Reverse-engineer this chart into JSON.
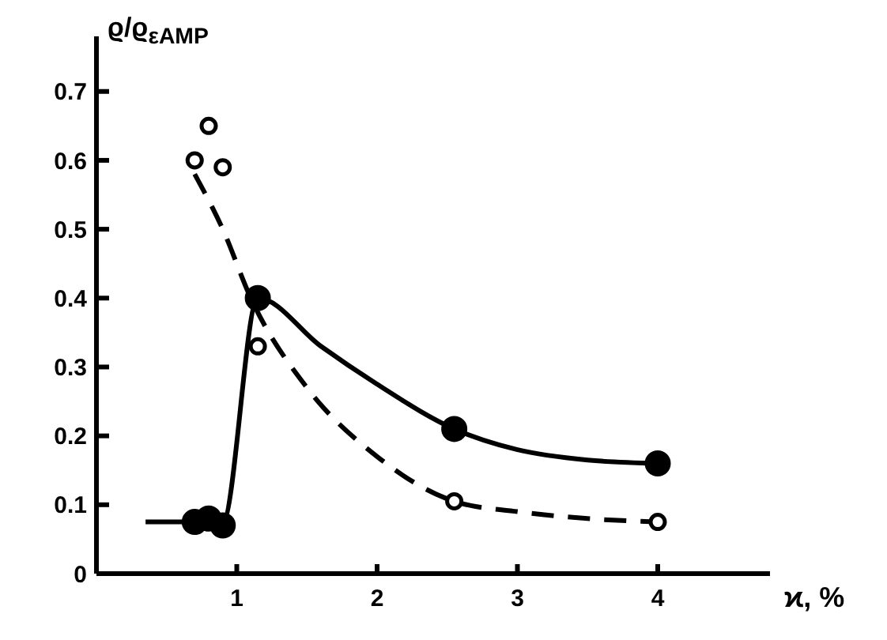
{
  "chart_data": {
    "type": "scatter",
    "xlabel": "ϰ, %",
    "ylabel": "ϱ/ϱ$_{εAMP}$",
    "xlim": [
      0,
      4.8
    ],
    "ylim": [
      0,
      0.78
    ],
    "xticks": [
      1,
      2,
      3,
      4
    ],
    "yticks": [
      0,
      0.1,
      0.2,
      0.3,
      0.4,
      0.5,
      0.6,
      0.7
    ],
    "grid": false,
    "legend": false,
    "series": [
      {
        "type": "line",
        "color": "#000000",
        "line_style": "solid",
        "marker": "none",
        "x": [
          0.35,
          0.9,
          1.15,
          1.6,
          2.0,
          2.55,
          3.0,
          3.5,
          4.0
        ],
        "values": [
          0.075,
          0.075,
          0.4,
          0.33,
          0.275,
          0.21,
          0.18,
          0.165,
          0.16
        ]
      },
      {
        "type": "line",
        "color": "#000000",
        "line_style": "dashed",
        "marker": "none",
        "x": [
          0.7,
          0.9,
          1.1,
          1.5,
          2.0,
          2.55,
          3.0,
          3.5,
          4.0
        ],
        "values": [
          0.58,
          0.5,
          0.4,
          0.27,
          0.17,
          0.105,
          0.09,
          0.08,
          0.075
        ]
      },
      {
        "color": "#000000",
        "marker": "circle",
        "x": [
          0.7,
          0.8,
          0.9,
          1.15,
          2.55,
          4.0
        ],
        "values": [
          0.075,
          0.08,
          0.07,
          0.4,
          0.21,
          0.16
        ]
      },
      {
        "color": "#ffffff",
        "marker": "circle",
        "x": [
          0.7,
          0.8,
          0.9,
          1.15,
          2.55,
          4.0
        ],
        "values": [
          0.6,
          0.65,
          0.59,
          0.33,
          0.105,
          0.075
        ]
      }
    ]
  }
}
